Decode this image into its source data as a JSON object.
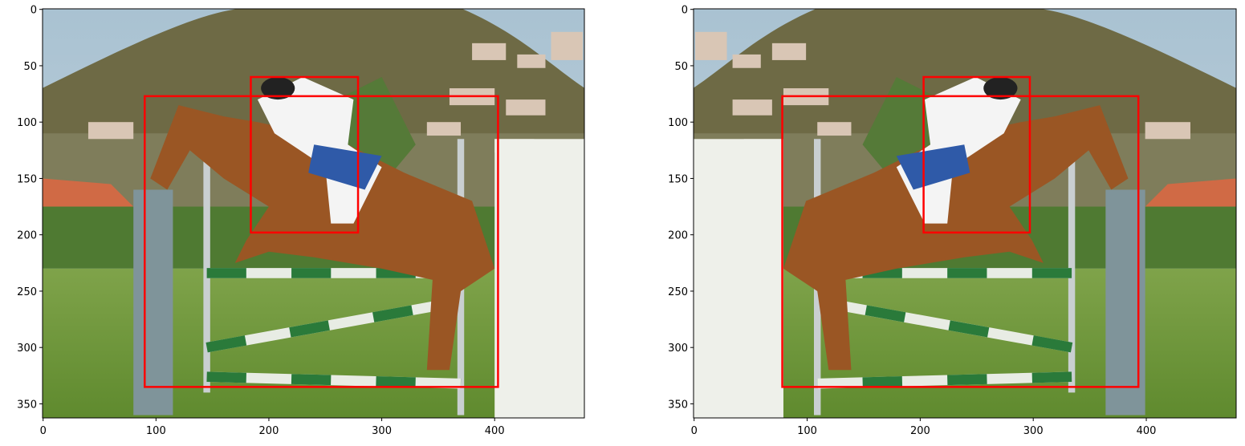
{
  "chart_data": [
    {
      "type": "image",
      "xlim": [
        -0.5,
        479.5
      ],
      "ylim": [
        362.5,
        -0.5
      ],
      "xticks": [
        0,
        100,
        200,
        300,
        400
      ],
      "yticks": [
        0,
        50,
        100,
        150,
        200,
        250,
        300,
        350
      ],
      "box_color": "#ff0000",
      "boxes": [
        {
          "x": [
            90,
            403
          ],
          "y": [
            77,
            335
          ]
        },
        {
          "x": [
            184,
            279
          ],
          "y": [
            60,
            198
          ]
        }
      ]
    },
    {
      "type": "image",
      "xlim": [
        -0.5,
        479.5
      ],
      "ylim": [
        362.5,
        -0.5
      ],
      "xticks": [
        0,
        100,
        200,
        300,
        400
      ],
      "yticks": [
        0,
        50,
        100,
        150,
        200,
        250,
        300,
        350
      ],
      "box_color": "#ff0000",
      "boxes": [
        {
          "x": [
            78,
            393
          ],
          "y": [
            77,
            335
          ]
        },
        {
          "x": [
            203,
            297
          ],
          "y": [
            60,
            198
          ]
        }
      ]
    }
  ]
}
